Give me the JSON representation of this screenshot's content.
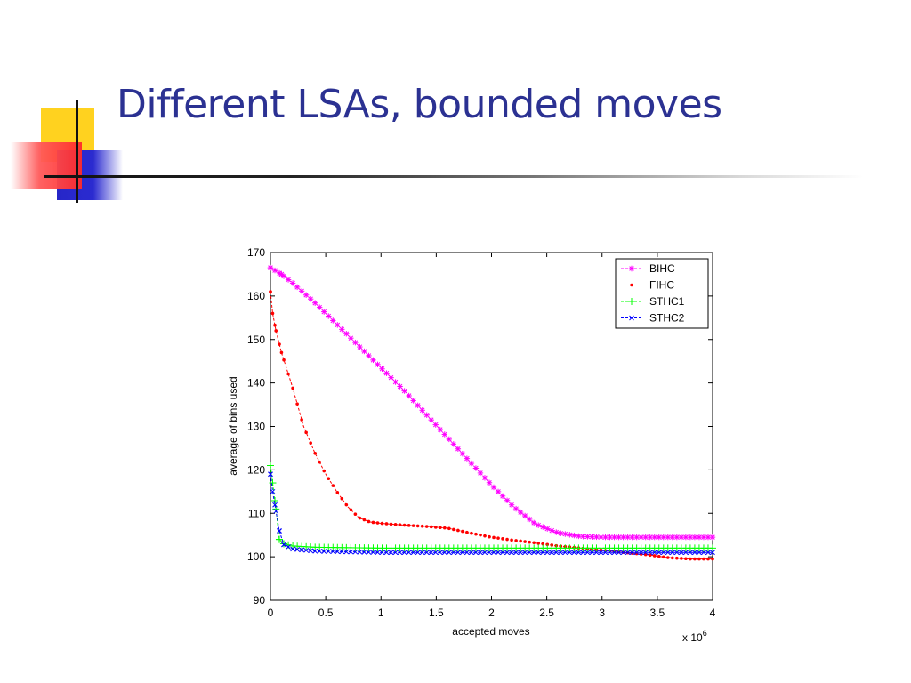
{
  "slide": {
    "title": "Different LSAs, bounded moves"
  },
  "chart_data": {
    "type": "line",
    "xlabel": "accepted moves",
    "ylabel": "average of bins used",
    "x_multiplier_label": "x 10",
    "x_multiplier_exponent": "6",
    "xlim": [
      0,
      4
    ],
    "ylim": [
      90,
      170
    ],
    "xticks": [
      "0",
      "0.5",
      "1",
      "1.5",
      "2",
      "2.5",
      "3",
      "3.5",
      "4"
    ],
    "yticks": [
      "90",
      "100",
      "110",
      "120",
      "130",
      "140",
      "150",
      "160",
      "170"
    ],
    "legend_position": "top-right",
    "grid": false,
    "series": [
      {
        "name": "BIHC",
        "color": "#ff00ff",
        "marker": "asterisk",
        "points": [
          [
            0,
            166.5
          ],
          [
            0.1,
            165
          ],
          [
            0.2,
            163
          ],
          [
            0.4,
            158.5
          ],
          [
            0.6,
            153.5
          ],
          [
            0.8,
            148.5
          ],
          [
            1.0,
            143.5
          ],
          [
            1.2,
            138.5
          ],
          [
            1.4,
            133
          ],
          [
            1.6,
            127.5
          ],
          [
            1.8,
            122
          ],
          [
            2.0,
            116.5
          ],
          [
            2.2,
            111.5
          ],
          [
            2.4,
            107.5
          ],
          [
            2.6,
            105.5
          ],
          [
            2.8,
            104.7
          ],
          [
            3.0,
            104.5
          ],
          [
            3.5,
            104.5
          ],
          [
            4.0,
            104.5
          ]
        ]
      },
      {
        "name": "FIHC",
        "color": "#ff0000",
        "marker": "dot",
        "points": [
          [
            0,
            161
          ],
          [
            0.02,
            156
          ],
          [
            0.05,
            152
          ],
          [
            0.1,
            147
          ],
          [
            0.2,
            139
          ],
          [
            0.3,
            130
          ],
          [
            0.4,
            124
          ],
          [
            0.5,
            119
          ],
          [
            0.6,
            115
          ],
          [
            0.7,
            111.5
          ],
          [
            0.8,
            109
          ],
          [
            0.9,
            108
          ],
          [
            1.0,
            107.7
          ],
          [
            1.2,
            107.3
          ],
          [
            1.4,
            107
          ],
          [
            1.6,
            106.6
          ],
          [
            1.8,
            105.5
          ],
          [
            2.0,
            104.5
          ],
          [
            2.2,
            103.8
          ],
          [
            2.4,
            103.2
          ],
          [
            2.6,
            102.5
          ],
          [
            2.8,
            102
          ],
          [
            3.0,
            101.5
          ],
          [
            3.2,
            101
          ],
          [
            3.4,
            100.5
          ],
          [
            3.6,
            99.8
          ],
          [
            3.8,
            99.5
          ],
          [
            4.0,
            99.5
          ]
        ]
      },
      {
        "name": "STHC1",
        "color": "#00ff00",
        "marker": "plus",
        "points": [
          [
            0,
            121
          ],
          [
            0.02,
            117
          ],
          [
            0.05,
            111
          ],
          [
            0.08,
            104
          ],
          [
            0.12,
            103
          ],
          [
            0.2,
            102.5
          ],
          [
            0.4,
            102.2
          ],
          [
            1.0,
            102
          ],
          [
            2.0,
            102
          ],
          [
            3.0,
            102
          ],
          [
            4.0,
            102
          ]
        ]
      },
      {
        "name": "STHC2",
        "color": "#0000ff",
        "marker": "x",
        "points": [
          [
            0,
            119
          ],
          [
            0.02,
            115
          ],
          [
            0.05,
            110.5
          ],
          [
            0.08,
            106
          ],
          [
            0.12,
            102.8
          ],
          [
            0.2,
            101.8
          ],
          [
            0.4,
            101.3
          ],
          [
            1.0,
            101
          ],
          [
            2.0,
            101
          ],
          [
            3.0,
            101
          ],
          [
            4.0,
            101
          ]
        ]
      }
    ]
  }
}
